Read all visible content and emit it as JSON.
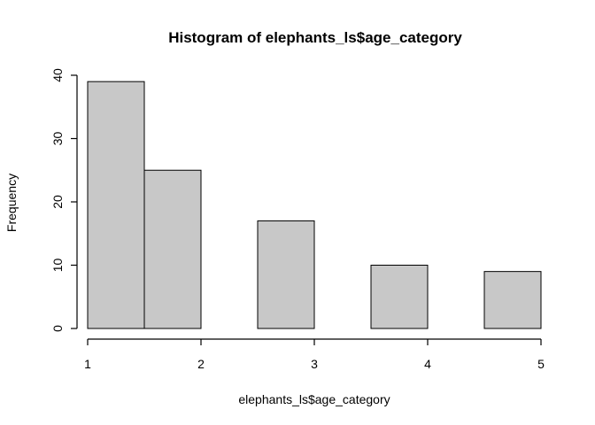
{
  "chart_data": {
    "type": "bar",
    "title": "Histogram of elephants_ls$age_category",
    "xlabel": "elephants_ls$age_category",
    "ylabel": "Frequency",
    "bins": [
      {
        "start": 1.0,
        "end": 1.5,
        "count": 39
      },
      {
        "start": 1.5,
        "end": 2.0,
        "count": 25
      },
      {
        "start": 2.0,
        "end": 2.5,
        "count": 0
      },
      {
        "start": 2.5,
        "end": 3.0,
        "count": 17
      },
      {
        "start": 3.0,
        "end": 3.5,
        "count": 0
      },
      {
        "start": 3.5,
        "end": 4.0,
        "count": 10
      },
      {
        "start": 4.0,
        "end": 4.5,
        "count": 0
      },
      {
        "start": 4.5,
        "end": 5.0,
        "count": 9
      }
    ],
    "xlim": [
      1,
      5
    ],
    "ylim": [
      0,
      40
    ],
    "x_ticks": [
      "1",
      "2",
      "3",
      "4",
      "5"
    ],
    "y_ticks": [
      "0",
      "10",
      "20",
      "30",
      "40"
    ],
    "bar_color": "#c8c8c8",
    "grid": false,
    "legend": "none"
  }
}
